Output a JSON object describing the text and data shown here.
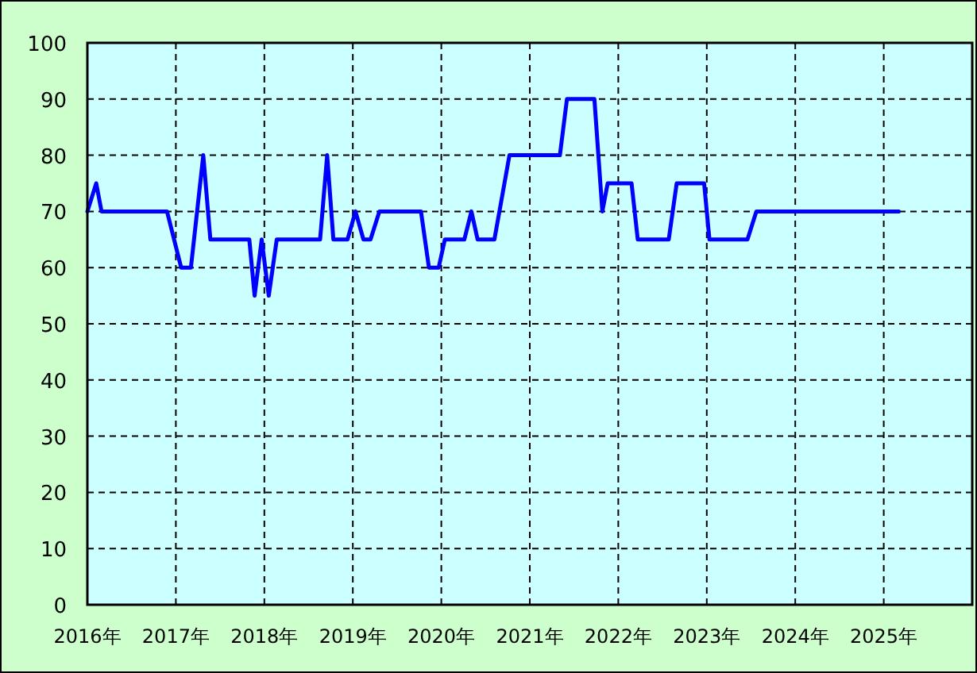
{
  "chart_data": {
    "type": "line",
    "x": [
      2016.0,
      2016.1,
      2016.16,
      2016.9,
      2017.06,
      2017.17,
      2017.31,
      2017.39,
      2017.83,
      2017.89,
      2017.97,
      2018.05,
      2018.14,
      2018.63,
      2018.71,
      2018.78,
      2018.94,
      2019.03,
      2019.12,
      2019.2,
      2019.3,
      2019.77,
      2019.86,
      2019.97,
      2020.04,
      2020.26,
      2020.34,
      2020.41,
      2020.6,
      2020.77,
      2021.34,
      2021.42,
      2021.73,
      2021.82,
      2021.88,
      2022.15,
      2022.22,
      2022.57,
      2022.66,
      2022.97,
      2023.03,
      2023.46,
      2023.56,
      2025.17
    ],
    "series": [
      {
        "color": "#0000ff",
        "values": [
          70,
          75,
          70,
          70,
          60,
          60,
          80,
          65,
          65,
          55,
          65,
          55,
          65,
          65,
          80,
          65,
          65,
          70,
          65,
          65,
          70,
          70,
          60,
          60,
          65,
          65,
          70,
          65,
          65,
          80,
          80,
          90,
          90,
          70,
          75,
          75,
          65,
          65,
          75,
          75,
          65,
          65,
          70,
          70
        ]
      }
    ],
    "xlim": [
      2016,
      2026
    ],
    "xticks": [
      {
        "value": 2016,
        "label": "2016年"
      },
      {
        "value": 2017,
        "label": "2017年"
      },
      {
        "value": 2018,
        "label": "2018年"
      },
      {
        "value": 2019,
        "label": "2019年"
      },
      {
        "value": 2020,
        "label": "2020年"
      },
      {
        "value": 2021,
        "label": "2021年"
      },
      {
        "value": 2022,
        "label": "2022年"
      },
      {
        "value": 2023,
        "label": "2023年"
      },
      {
        "value": 2024,
        "label": "2024年"
      },
      {
        "value": 2025,
        "label": "2025年"
      }
    ],
    "ylim": [
      0,
      100
    ],
    "yticks": [
      0,
      10,
      20,
      30,
      40,
      50,
      60,
      70,
      80,
      90,
      100
    ],
    "grid": true,
    "marker": "none",
    "line_style": "solid"
  }
}
